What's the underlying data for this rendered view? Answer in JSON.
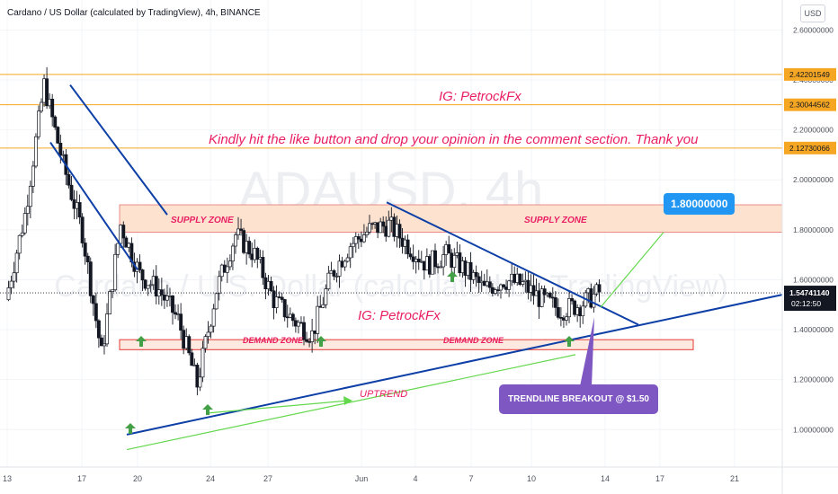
{
  "header": {
    "title": "Cardano / US Dollar (calculated by TradingView), 4h, BINANCE"
  },
  "currency_button": "USD",
  "watermark": {
    "symbol": "ADAUSD, 4h",
    "description": "Cardano / U.S. Dollar (calculated by TradingView)"
  },
  "annotations": {
    "ig_top": "IG: PetrockFx",
    "ig_mid": "IG: PetrockFx",
    "message": "Kindly hit the like button and drop your opinion in the comment section. Thank you",
    "supply_zone_left": "SUPPLY ZONE",
    "supply_zone_right": "SUPPLY ZONE",
    "demand_zone_left": "DEMAND ZONE",
    "demand_zone_right": "DEMAND ZONE",
    "uptrend": "UPTREND",
    "target_callout": "1.80000000",
    "breakout_callout": "TRENDLINE BREAKOUT @ $1.50"
  },
  "colors": {
    "up": "#26a69a",
    "down": "#ef5350",
    "candle": "#131722",
    "horizontal_lines": "#f5a623",
    "trendline": "#0d3fa6",
    "green_line": "#63d84c",
    "supply_fill": "#fde3cf",
    "annotation_text": "#e91e63",
    "callout_blue": "#2196f3",
    "callout_purple": "#7e57c2"
  },
  "chart_data": {
    "type": "candlestick",
    "symbol": "ADAUSD",
    "exchange": "BINANCE",
    "timeframe": "4h",
    "y_axis": {
      "ticks": [
        "2.60000000",
        "2.40000000",
        "2.20000000",
        "2.00000000",
        "1.80000000",
        "1.60000000",
        "1.40000000",
        "1.20000000",
        "1.00000000"
      ],
      "range": [
        0.85,
        2.72
      ]
    },
    "x_axis": {
      "ticks": [
        "13",
        "17",
        "20",
        "24",
        "27",
        "Jun",
        "4",
        "7",
        "10",
        "14",
        "17",
        "21"
      ]
    },
    "price_labels": [
      {
        "label": "2.42201549",
        "value": 2.42201549
      },
      {
        "label": "2.30044562",
        "value": 2.30044562
      },
      {
        "label": "2.12730066",
        "value": 2.12730066
      }
    ],
    "current_price": {
      "price": "1.54741140",
      "countdown": "02:12:50",
      "value": 1.5474114
    },
    "zones": [
      {
        "label": "SUPPLY ZONE",
        "low": 1.79,
        "high": 1.9
      },
      {
        "label": "DEMAND ZONE",
        "low": 1.32,
        "high": 1.36
      }
    ],
    "target": 1.8,
    "breakout_price": 1.5,
    "price_path": [
      [
        "13",
        1.52
      ],
      [
        "15",
        1.86
      ],
      [
        "16",
        2.38
      ],
      [
        "17",
        2.06
      ],
      [
        "18",
        1.79
      ],
      [
        "19",
        1.3
      ],
      [
        "20",
        1.82
      ],
      [
        "21",
        1.62
      ],
      [
        "22",
        1.56
      ],
      [
        "23",
        1.44
      ],
      [
        "24",
        1.18
      ],
      [
        "25",
        1.56
      ],
      [
        "26",
        1.78
      ],
      [
        "27",
        1.7
      ],
      [
        "28",
        1.52
      ],
      [
        "29",
        1.44
      ],
      [
        "30",
        1.38
      ],
      [
        "31",
        1.62
      ],
      [
        "Jun",
        1.74
      ],
      [
        "2",
        1.8
      ],
      [
        "3",
        1.82
      ],
      [
        "4",
        1.74
      ],
      [
        "5",
        1.66
      ],
      [
        "6",
        1.7
      ],
      [
        "7",
        1.64
      ],
      [
        "8",
        1.56
      ],
      [
        "9",
        1.6
      ],
      [
        "10",
        1.58
      ],
      [
        "11",
        1.52
      ],
      [
        "12",
        1.48
      ],
      [
        "13",
        1.5
      ],
      [
        "14",
        1.55
      ]
    ]
  }
}
